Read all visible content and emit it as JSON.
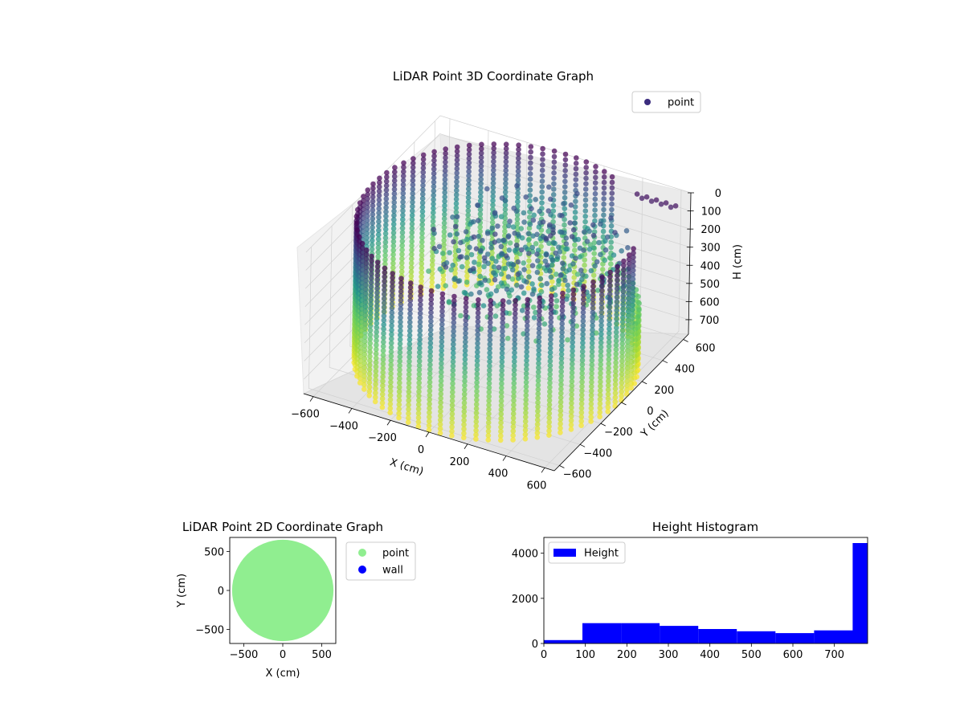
{
  "colors": {
    "viridis": [
      "#440154",
      "#3b528b",
      "#21918c",
      "#5ec962",
      "#a0da39",
      "#fde725"
    ],
    "point_2d": "#90ee90",
    "wall": "#0000ff",
    "histogram": "#0000ff"
  },
  "chart_data": [
    {
      "type": "scatter",
      "title": "LiDAR Point 3D Coordinate Graph",
      "xlabel": "X (cm)",
      "ylabel": "Y (cm)",
      "zlabel": "H (cm)",
      "x_ticks": [
        "−600",
        "−400",
        "−200",
        "0",
        "200",
        "400",
        "600"
      ],
      "y_ticks": [
        "−600",
        "−400",
        "−200",
        "0",
        "200",
        "400",
        "600"
      ],
      "z_ticks": [
        "0",
        "100",
        "200",
        "300",
        "400",
        "500",
        "600",
        "700"
      ],
      "xlim": [
        -650,
        650
      ],
      "ylim": [
        -650,
        650
      ],
      "zlim": [
        780,
        0
      ],
      "z_inverted": true,
      "colormap": "viridis",
      "legend": {
        "position": "top-right",
        "entries": [
          "point"
        ]
      },
      "description": "cylindrical wall of points, radius about 650 cm, height 0 to 780 cm, with an interior structure of points at heights 100 to 450 cm"
    },
    {
      "type": "scatter",
      "title": "LiDAR Point 2D Coordinate Graph",
      "xlabel": "X (cm)",
      "ylabel": "Y (cm)",
      "x_ticks": [
        "−500",
        "0",
        "500"
      ],
      "y_ticks": [
        "500",
        "0",
        "−500"
      ],
      "xlim": [
        -680,
        680
      ],
      "ylim": [
        -680,
        680
      ],
      "legend": {
        "position": "outside-right",
        "entries": [
          "point",
          "wall"
        ]
      },
      "series": [
        {
          "name": "point",
          "shape": "filled disk",
          "radius": 650
        },
        {
          "name": "wall",
          "points": []
        }
      ]
    },
    {
      "type": "bar",
      "title": "Height Histogram",
      "x_ticks": [
        "0",
        "100",
        "200",
        "300",
        "400",
        "500",
        "600",
        "700"
      ],
      "y_ticks": [
        "0",
        "2000",
        "4000"
      ],
      "xlim": [
        0,
        780
      ],
      "ylim": [
        0,
        4700
      ],
      "legend": {
        "position": "top-left",
        "entries": [
          "Height"
        ]
      },
      "series": [
        {
          "name": "Height",
          "bin_edges": [
            0,
            93,
            186,
            279,
            372,
            465,
            558,
            651,
            744,
            780
          ],
          "values": [
            150,
            900,
            900,
            780,
            640,
            540,
            460,
            580,
            4450
          ]
        }
      ]
    }
  ]
}
